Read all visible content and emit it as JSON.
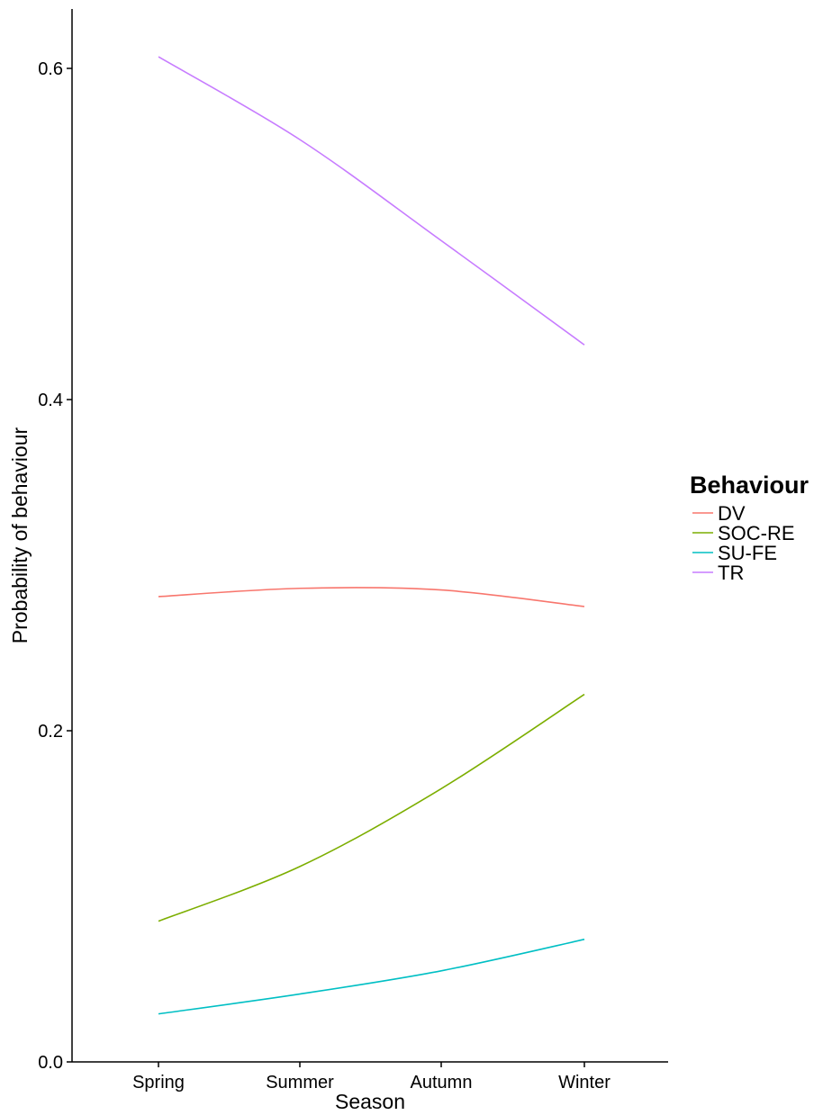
{
  "chart_data": {
    "type": "line",
    "xlabel": "Season",
    "ylabel": "Probability of behaviour",
    "categories": [
      "Spring",
      "Summer",
      "Autumn",
      "Winter"
    ],
    "ylim": [
      0.0,
      0.6
    ],
    "yticks": [
      "0.0",
      "0.2",
      "0.4",
      "0.6"
    ],
    "grid": false,
    "legend": {
      "title": "Behaviour",
      "placement": "right"
    },
    "series": [
      {
        "name": "DV",
        "color": "#F8766D",
        "values": [
          0.281,
          0.286,
          0.285,
          0.275
        ]
      },
      {
        "name": "SOC-RE",
        "color": "#7CAE00",
        "values": [
          0.085,
          0.118,
          0.165,
          0.222
        ]
      },
      {
        "name": "SU-FE",
        "color": "#00BFC4",
        "values": [
          0.029,
          0.041,
          0.055,
          0.074
        ]
      },
      {
        "name": "TR",
        "color": "#C77CFF",
        "values": [
          0.607,
          0.557,
          0.496,
          0.433
        ]
      }
    ]
  }
}
